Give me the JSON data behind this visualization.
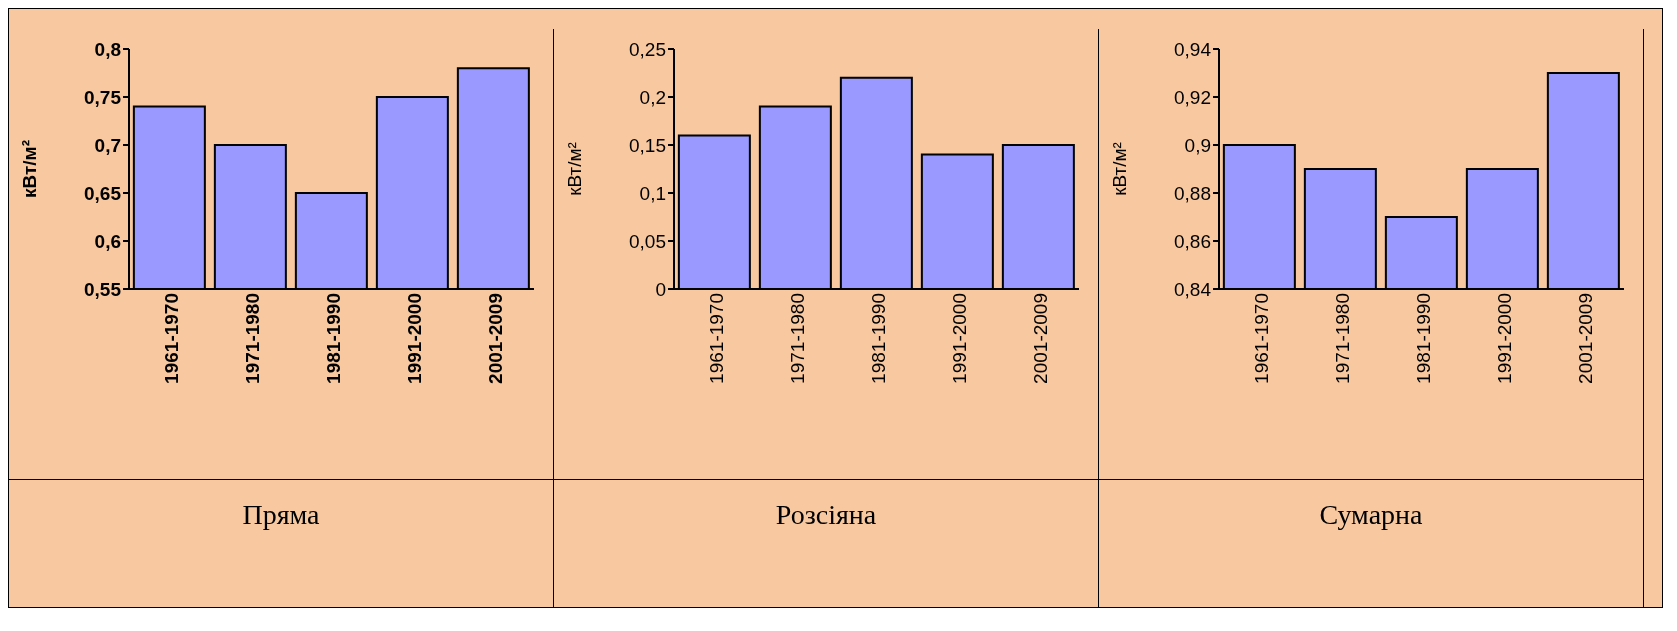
{
  "chart_data": [
    {
      "type": "bar",
      "title": "Пряма",
      "ylabel": "кВт/м²",
      "categories": [
        "1961-1970",
        "1971-1980",
        "1981-1990",
        "1991-2000",
        "2001-2009"
      ],
      "values": [
        0.74,
        0.7,
        0.65,
        0.75,
        0.78
      ],
      "color": "#9999ff",
      "ylim": [
        0.55,
        0.8
      ],
      "yticks": [
        {
          "value": 0.55,
          "label": "0,55"
        },
        {
          "value": 0.6,
          "label": "0,6"
        },
        {
          "value": 0.65,
          "label": "0,65"
        },
        {
          "value": 0.7,
          "label": "0,7"
        },
        {
          "value": 0.75,
          "label": "0,75"
        },
        {
          "value": 0.8,
          "label": "0,8"
        }
      ],
      "grid": false,
      "legend": false
    },
    {
      "type": "bar",
      "title": "Розсіяна",
      "ylabel": "кВт/м²",
      "categories": [
        "1961-1970",
        "1971-1980",
        "1981-1990",
        "1991-2000",
        "2001-2009"
      ],
      "values": [
        0.16,
        0.19,
        0.22,
        0.14,
        0.15
      ],
      "color": "#9999ff",
      "ylim": [
        0,
        0.25
      ],
      "yticks": [
        0,
        {
          "value": 0.05,
          "label": "0,05"
        },
        {
          "value": 0.1,
          "label": "0,1"
        },
        {
          "value": 0.15,
          "label": "0,15"
        },
        {
          "value": 0.2,
          "label": "0,2"
        },
        {
          "value": 0.25,
          "label": "0,25"
        }
      ],
      "grid": false,
      "legend": false
    },
    {
      "type": "bar",
      "title": "Сумарна",
      "ylabel": "кВт/м²",
      "categories": [
        "1961-1970",
        "1971-1980",
        "1981-1990",
        "1991-2000",
        "2001-2009"
      ],
      "values": [
        0.9,
        0.89,
        0.87,
        0.89,
        0.93
      ],
      "color": "#9999ff",
      "ylim": [
        0.84,
        0.94
      ],
      "yticks": [
        {
          "value": 0.84,
          "label": "0,84"
        },
        {
          "value": 0.86,
          "label": "0,86"
        },
        {
          "value": 0.88,
          "label": "0,88"
        },
        {
          "value": 0.9,
          "label": "0,9"
        },
        {
          "value": 0.92,
          "label": "0,92"
        },
        {
          "value": 0.94,
          "label": "0,94"
        }
      ],
      "grid": false,
      "legend": false
    }
  ]
}
